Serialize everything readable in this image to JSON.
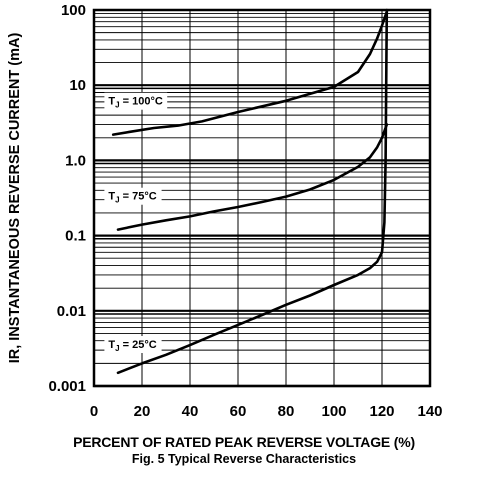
{
  "chart_data": {
    "type": "line",
    "x_scale": "linear",
    "y_scale": "log",
    "xlim": [
      0,
      140
    ],
    "ylim": [
      0.001,
      100
    ],
    "x_ticks": [
      "0",
      "20",
      "40",
      "60",
      "80",
      "100",
      "120",
      "140"
    ],
    "y_ticks": [
      "0.001",
      "0.01",
      "0.1",
      "1.0",
      "10",
      "100"
    ],
    "ylabel": "IR, INSTANTANEOUS REVERSE CURRENT (mA)",
    "xlabel": "PERCENT OF RATED PEAK REVERSE VOLTAGE (%)",
    "caption": "Fig. 5  Typical Reverse Characteristics",
    "grid": true,
    "series": [
      {
        "name": "TJ = 100°C",
        "label_parts": {
          "main": "T",
          "sub": "J",
          "rest": " = 100°C"
        },
        "x": [
          8,
          15,
          25,
          35,
          45,
          60,
          80,
          100,
          110,
          115,
          118,
          120,
          122
        ],
        "y": [
          2.2,
          2.4,
          2.7,
          2.9,
          3.3,
          4.4,
          6.2,
          9.5,
          15,
          26,
          42,
          62,
          95
        ]
      },
      {
        "name": "TJ = 75°C",
        "label_parts": {
          "main": "T",
          "sub": "J",
          "rest": " = 75°C"
        },
        "x": [
          10,
          20,
          30,
          40,
          50,
          60,
          70,
          80,
          90,
          100,
          110,
          115,
          118,
          120,
          122
        ],
        "y": [
          0.12,
          0.14,
          0.16,
          0.18,
          0.21,
          0.24,
          0.28,
          0.33,
          0.41,
          0.55,
          0.82,
          1.1,
          1.5,
          2.0,
          3.0
        ]
      },
      {
        "name": "TJ = 25°C",
        "label_parts": {
          "main": "T",
          "sub": "J",
          "rest": " = 25°C"
        },
        "x": [
          10,
          20,
          30,
          40,
          50,
          60,
          70,
          80,
          90,
          100,
          110,
          115,
          118,
          120,
          121,
          121.5,
          122
        ],
        "y": [
          0.0015,
          0.002,
          0.0026,
          0.0035,
          0.0048,
          0.0065,
          0.0088,
          0.012,
          0.016,
          0.022,
          0.03,
          0.037,
          0.045,
          0.06,
          0.15,
          1.0,
          100
        ]
      }
    ]
  }
}
